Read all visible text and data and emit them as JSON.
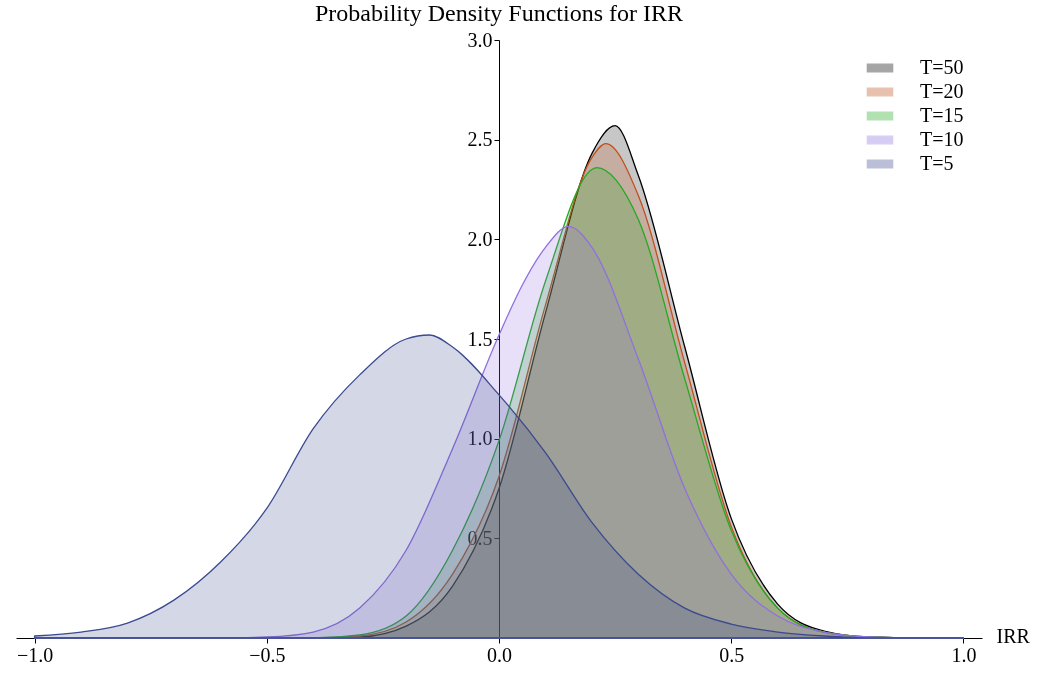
{
  "chart_data": {
    "type": "area",
    "title": "Probability Density Functions for IRR",
    "xlabel": "IRR",
    "xlim": [
      -1.04,
      1.04
    ],
    "ylim": [
      0,
      3
    ],
    "xticks": [
      {
        "value": -1,
        "label": "−1.0"
      },
      -0.5,
      {
        "value": 0,
        "label": "0.0"
      },
      0.5,
      {
        "value": 1,
        "label": "1.0"
      }
    ],
    "yticks": [
      0.5,
      {
        "value": 1,
        "label": "1.0"
      },
      1.5,
      {
        "value": 2,
        "label": "2.0"
      },
      2.5,
      {
        "value": 3,
        "label": "3.0"
      }
    ],
    "grid": false,
    "legend": "top right",
    "series": [
      {
        "name": "T=50",
        "color": "#000000",
        "x": [
          -1.0,
          -0.4,
          -0.3,
          -0.2,
          -0.1,
          0.0,
          0.1,
          0.2,
          0.25,
          0.3,
          0.4,
          0.5,
          0.6,
          0.7,
          0.8,
          0.9,
          1.0
        ],
        "values": [
          0,
          0,
          0.005,
          0.06,
          0.26,
          0.75,
          1.63,
          2.43,
          2.57,
          2.32,
          1.46,
          0.6,
          0.17,
          0.035,
          0.005,
          0,
          0
        ]
      },
      {
        "name": "T=20",
        "color": "#c0501a",
        "x": [
          -1.0,
          -0.4,
          -0.3,
          -0.2,
          -0.1,
          0.0,
          0.1,
          0.2,
          0.23,
          0.3,
          0.4,
          0.5,
          0.6,
          0.7,
          0.8,
          0.9,
          1.0
        ],
        "values": [
          0,
          0,
          0.01,
          0.08,
          0.32,
          0.81,
          1.67,
          2.41,
          2.48,
          2.22,
          1.38,
          0.56,
          0.15,
          0.03,
          0.005,
          0,
          0
        ]
      },
      {
        "name": "T=15",
        "color": "#22aa22",
        "x": [
          -1.0,
          -0.4,
          -0.3,
          -0.2,
          -0.1,
          0.0,
          0.1,
          0.2,
          0.21,
          0.3,
          0.4,
          0.5,
          0.6,
          0.7,
          0.8,
          0.9,
          1.0
        ],
        "values": [
          0,
          0,
          0.015,
          0.11,
          0.44,
          0.99,
          1.79,
          2.35,
          2.36,
          2.1,
          1.3,
          0.54,
          0.15,
          0.03,
          0.005,
          0,
          0
        ]
      },
      {
        "name": "T=10",
        "color": "#9070e0",
        "x": [
          -1.0,
          -0.6,
          -0.5,
          -0.4,
          -0.3,
          -0.2,
          -0.1,
          0.0,
          0.05,
          0.1,
          0.15,
          0.2,
          0.3,
          0.4,
          0.5,
          0.6,
          0.7,
          0.8,
          0.9,
          1.0
        ],
        "values": [
          0,
          0,
          0.005,
          0.03,
          0.15,
          0.44,
          0.95,
          1.52,
          1.77,
          1.96,
          2.065,
          1.96,
          1.4,
          0.75,
          0.32,
          0.11,
          0.03,
          0.005,
          0,
          0
        ]
      },
      {
        "name": "T=5",
        "color": "#3b4a8f",
        "x": [
          -1.0,
          -0.9,
          -0.8,
          -0.7,
          -0.6,
          -0.5,
          -0.4,
          -0.3,
          -0.2,
          -0.15,
          -0.1,
          0.0,
          0.1,
          0.2,
          0.3,
          0.4,
          0.5,
          0.6,
          0.7,
          0.8,
          0.9,
          1.0
        ],
        "values": [
          0.01,
          0.03,
          0.075,
          0.19,
          0.38,
          0.65,
          1.05,
          1.32,
          1.5,
          1.52,
          1.46,
          1.22,
          0.93,
          0.58,
          0.32,
          0.15,
          0.07,
          0.03,
          0.01,
          0,
          0,
          0
        ]
      }
    ]
  }
}
